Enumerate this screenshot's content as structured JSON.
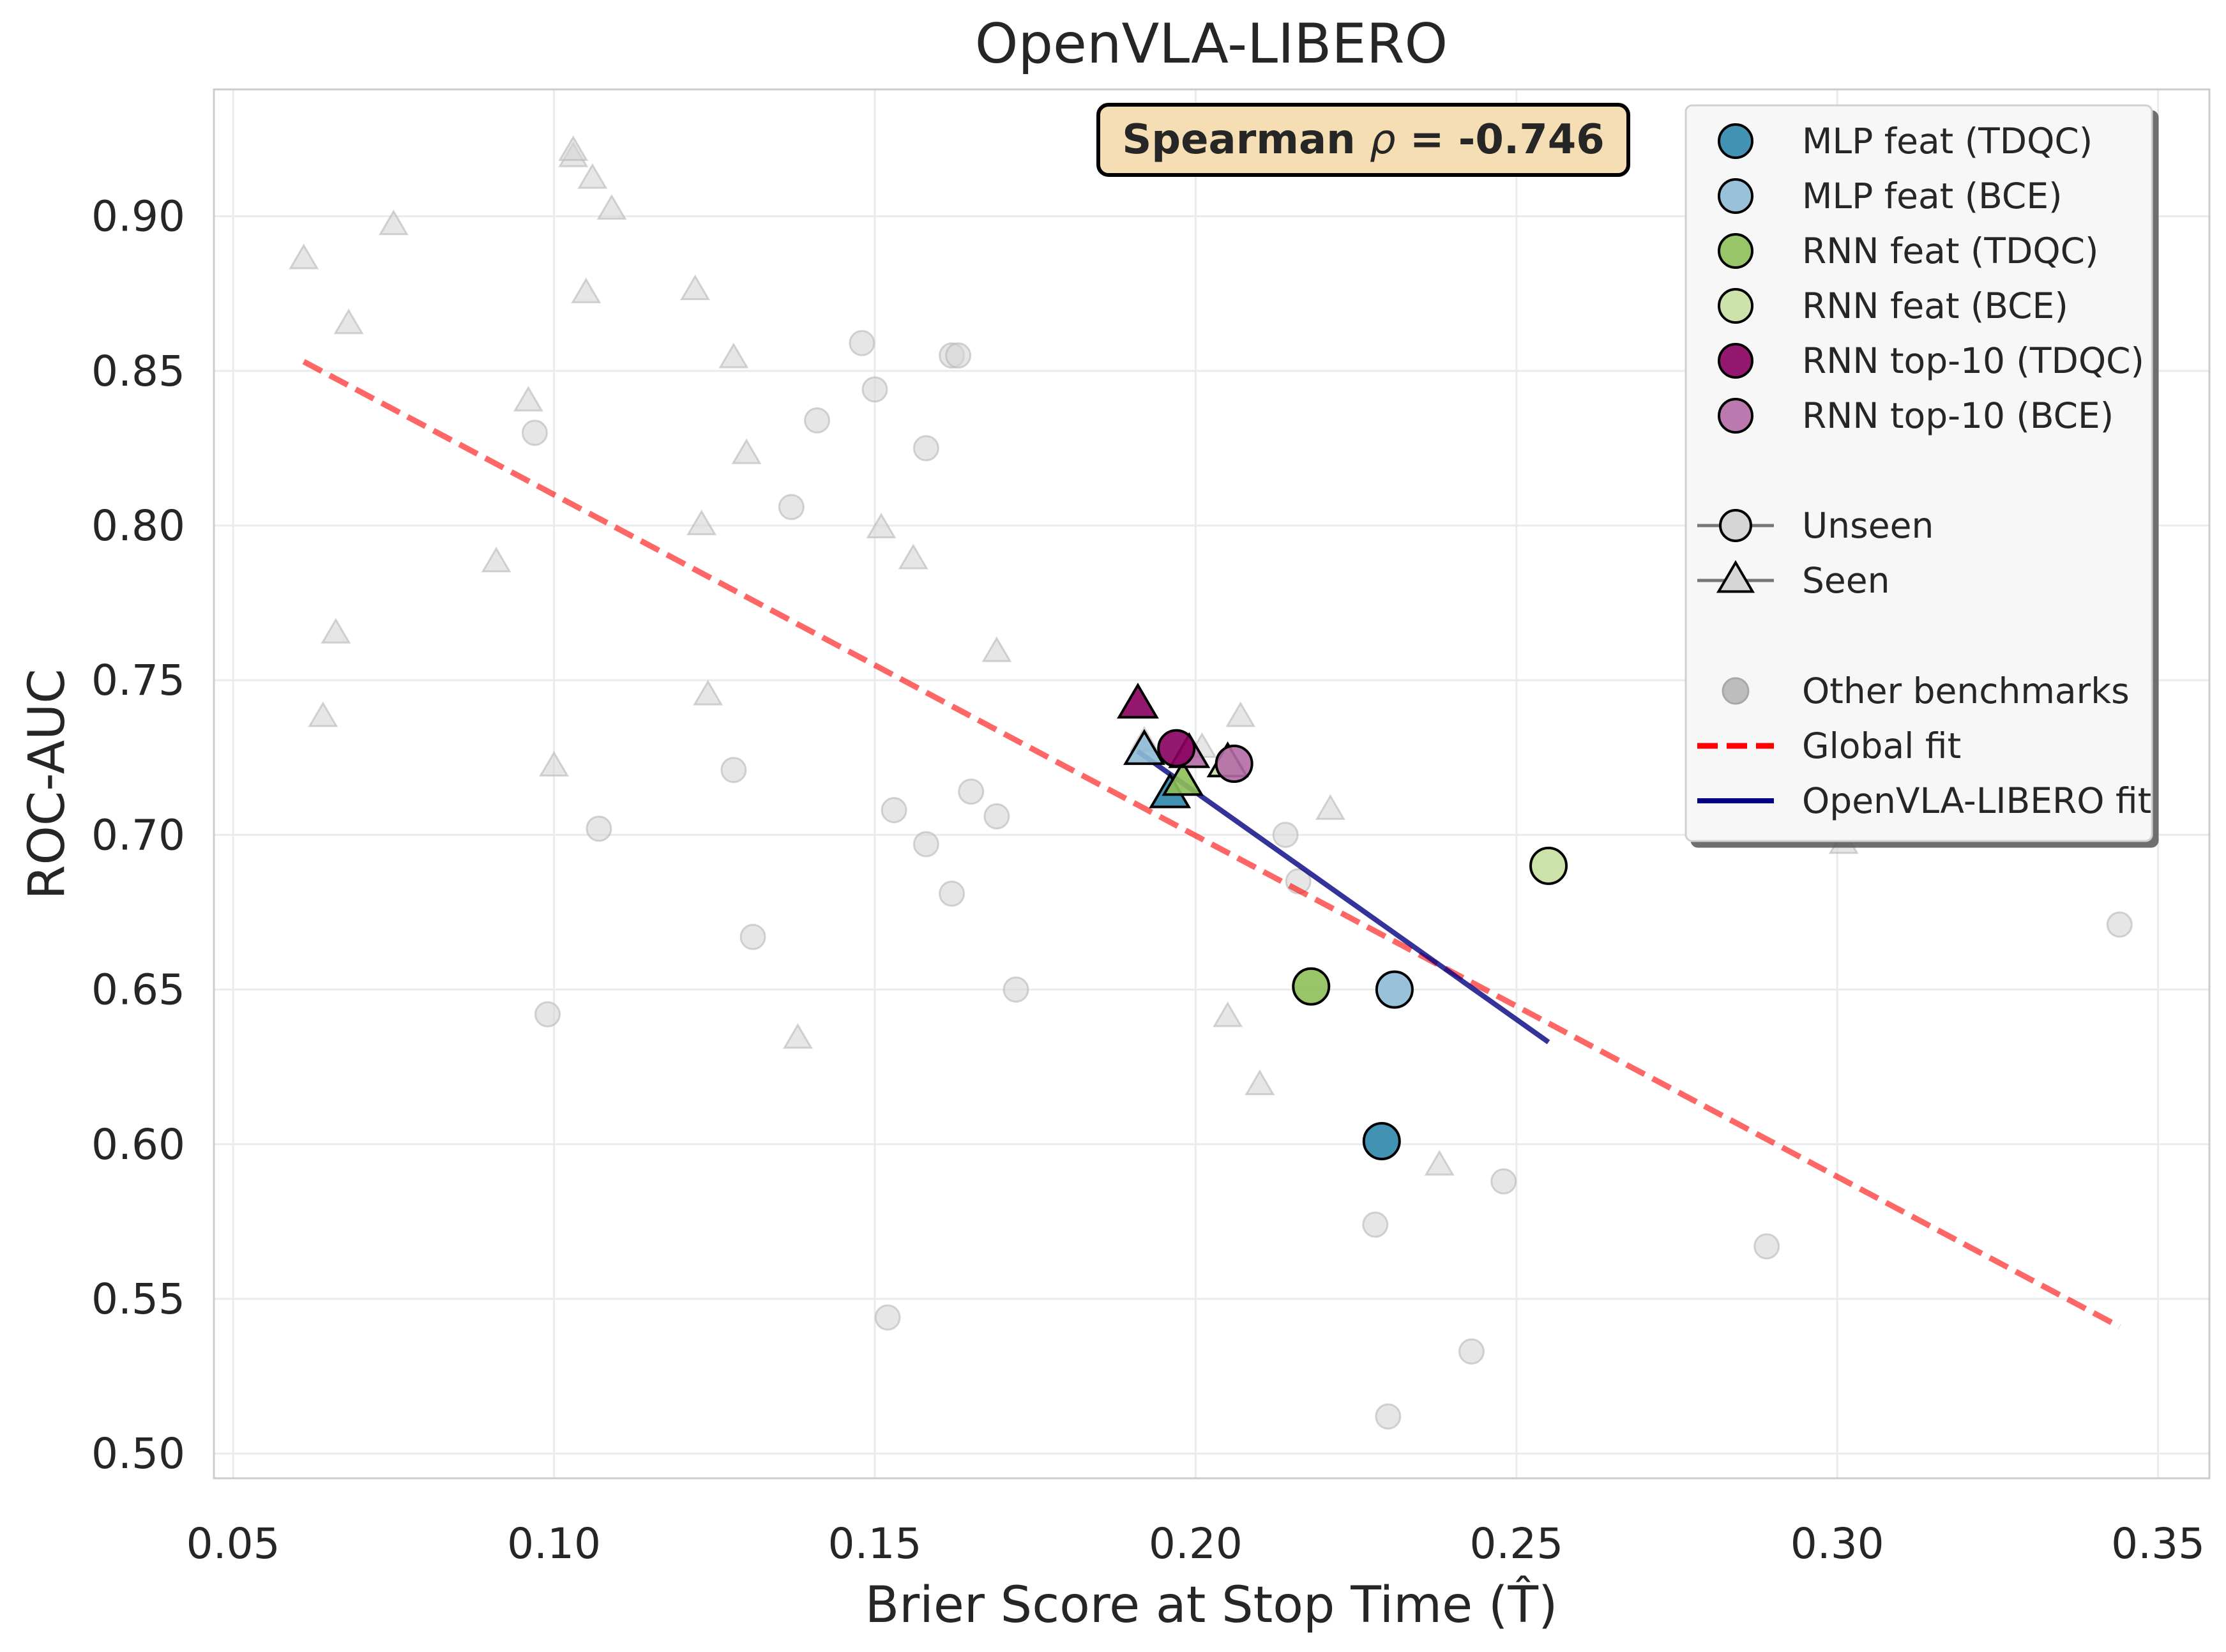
{
  "chart_data": {
    "type": "scatter",
    "title": "OpenVLA-LIBERO",
    "xlabel": "Brier Score at Stop Time (T̂)",
    "ylabel": "ROC-AUC",
    "xlim": [
      0.047,
      0.358
    ],
    "ylim": [
      0.492,
      0.941
    ],
    "xticks": [
      0.05,
      0.1,
      0.15,
      0.2,
      0.25,
      0.3,
      0.35
    ],
    "yticks": [
      0.5,
      0.55,
      0.6,
      0.65,
      0.7,
      0.75,
      0.8,
      0.85,
      0.9
    ],
    "x_tick_labels": [
      "0.05",
      "0.10",
      "0.15",
      "0.20",
      "0.25",
      "0.30",
      "0.35"
    ],
    "y_tick_labels": [
      "0.50",
      "0.55",
      "0.60",
      "0.65",
      "0.70",
      "0.75",
      "0.80",
      "0.85",
      "0.90"
    ],
    "grid": true,
    "legend_position": "top-right",
    "annotation": {
      "text_prefix": "Spearman ",
      "rho": "ρ",
      "text_suffix": " = -0.746"
    },
    "series": [
      {
        "name": "MLP feat (TDQC)",
        "color": "#2e86ab",
        "points": [
          {
            "x": 0.229,
            "y": 0.601,
            "marker": "circle"
          },
          {
            "x": 0.196,
            "y": 0.713,
            "marker": "triangle"
          }
        ]
      },
      {
        "name": "MLP feat (BCE)",
        "color": "#8ebad6",
        "points": [
          {
            "x": 0.231,
            "y": 0.65,
            "marker": "circle"
          },
          {
            "x": 0.192,
            "y": 0.727,
            "marker": "triangle"
          }
        ]
      },
      {
        "name": "RNN feat (TDQC)",
        "color": "#8cbf58",
        "points": [
          {
            "x": 0.218,
            "y": 0.651,
            "marker": "circle"
          },
          {
            "x": 0.198,
            "y": 0.717,
            "marker": "triangle"
          }
        ]
      },
      {
        "name": "RNN feat (BCE)",
        "color": "#c5e0a1",
        "points": [
          {
            "x": 0.255,
            "y": 0.69,
            "marker": "circle"
          },
          {
            "x": 0.205,
            "y": 0.723,
            "marker": "triangle"
          }
        ]
      },
      {
        "name": "RNN top-10 (TDQC)",
        "color": "#88005e",
        "points": [
          {
            "x": 0.197,
            "y": 0.728,
            "marker": "circle"
          },
          {
            "x": 0.191,
            "y": 0.742,
            "marker": "triangle"
          }
        ]
      },
      {
        "name": "RNN top-10 (BCE)",
        "color": "#b56aa6",
        "points": [
          {
            "x": 0.206,
            "y": 0.723,
            "marker": "circle"
          },
          {
            "x": 0.199,
            "y": 0.726,
            "marker": "triangle"
          }
        ]
      }
    ],
    "other_benchmarks": {
      "name": "Other benchmarks",
      "circles": [
        [
          0.097,
          0.83
        ],
        [
          0.099,
          0.642
        ],
        [
          0.107,
          0.702
        ],
        [
          0.128,
          0.721
        ],
        [
          0.131,
          0.667
        ],
        [
          0.137,
          0.806
        ],
        [
          0.141,
          0.834
        ],
        [
          0.148,
          0.859
        ],
        [
          0.15,
          0.844
        ],
        [
          0.152,
          0.544
        ],
        [
          0.153,
          0.708
        ],
        [
          0.158,
          0.697
        ],
        [
          0.158,
          0.825
        ],
        [
          0.162,
          0.855
        ],
        [
          0.163,
          0.855
        ],
        [
          0.162,
          0.681
        ],
        [
          0.165,
          0.714
        ],
        [
          0.169,
          0.706
        ],
        [
          0.172,
          0.65
        ],
        [
          0.214,
          0.7
        ],
        [
          0.216,
          0.685
        ],
        [
          0.228,
          0.574
        ],
        [
          0.23,
          0.512
        ],
        [
          0.243,
          0.533
        ],
        [
          0.248,
          0.588
        ],
        [
          0.289,
          0.567
        ],
        [
          0.344,
          0.671
        ]
      ],
      "triangles": [
        [
          0.061,
          0.886
        ],
        [
          0.064,
          0.738
        ],
        [
          0.066,
          0.765
        ],
        [
          0.068,
          0.865
        ],
        [
          0.075,
          0.897
        ],
        [
          0.091,
          0.788
        ],
        [
          0.096,
          0.84
        ],
        [
          0.1,
          0.722
        ],
        [
          0.103,
          0.919
        ],
        [
          0.103,
          0.921
        ],
        [
          0.105,
          0.875
        ],
        [
          0.106,
          0.912
        ],
        [
          0.109,
          0.902
        ],
        [
          0.122,
          0.876
        ],
        [
          0.123,
          0.8
        ],
        [
          0.124,
          0.745
        ],
        [
          0.128,
          0.854
        ],
        [
          0.13,
          0.823
        ],
        [
          0.138,
          0.634
        ],
        [
          0.151,
          0.799
        ],
        [
          0.156,
          0.789
        ],
        [
          0.169,
          0.759
        ],
        [
          0.192,
          0.73
        ],
        [
          0.201,
          0.728
        ],
        [
          0.205,
          0.641
        ],
        [
          0.207,
          0.738
        ],
        [
          0.21,
          0.619
        ],
        [
          0.221,
          0.708
        ],
        [
          0.238,
          0.593
        ],
        [
          0.301,
          0.697
        ]
      ]
    },
    "global_fit": {
      "name": "Global fit",
      "color": "#ff0000",
      "x": [
        0.061,
        0.344
      ],
      "y": [
        0.853,
        0.541
      ]
    },
    "local_fit": {
      "name": "OpenVLA-LIBERO fit",
      "color": "#000080",
      "x": [
        0.191,
        0.255
      ],
      "y": [
        0.727,
        0.633
      ]
    },
    "marker_legend": [
      {
        "name": "Unseen",
        "marker": "circle"
      },
      {
        "name": "Seen",
        "marker": "triangle"
      }
    ]
  }
}
